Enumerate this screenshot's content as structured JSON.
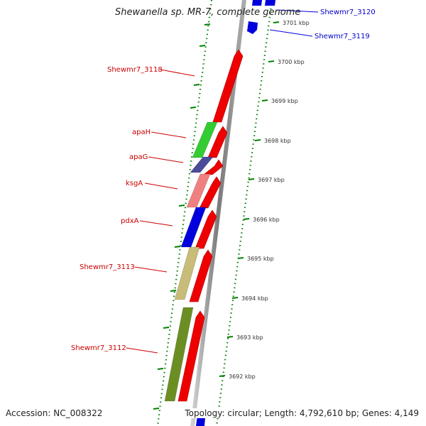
{
  "title": "Shewanella sp. MR-7, complete genome",
  "accession": "Accession: NC_008322",
  "topology": "Topology: circular; Length: 4,792,610 bp; Genes: 4,149",
  "colors": {
    "forward_gene": "#ee0000",
    "reverse_gene_label": "#cc0000",
    "top_gene": "#0000dd",
    "top_gene_label": "#0000cc",
    "backbone": "#8c8c8c",
    "ticks": "#008000"
  },
  "top_genes": [
    {
      "label": "Shewmr7_3120"
    },
    {
      "label": "Shewmr7_3119"
    }
  ],
  "forward_genes": [
    {
      "label": "Shewmr7_3118"
    },
    {
      "label": ""
    },
    {
      "label": ""
    },
    {
      "label": ""
    },
    {
      "label": ""
    },
    {
      "label": ""
    },
    {
      "label": ""
    }
  ],
  "reverse_genes": [
    {
      "label": "apaH",
      "color": "#33cc33"
    },
    {
      "label": "apaG",
      "color": "#4b4b99"
    },
    {
      "label": "ksgA",
      "color": "#f08080"
    },
    {
      "label": "pdxA",
      "color": "#0000dd"
    },
    {
      "label": "Shewmr7_3113",
      "color": "#c8bc78"
    },
    {
      "label": "Shewmr7_3112",
      "color": "#6b8e23"
    }
  ],
  "kbp_ticks": [
    {
      "label": "3701 kbp"
    },
    {
      "label": "3700 kbp"
    },
    {
      "label": "3699 kbp"
    },
    {
      "label": "3698 kbp"
    },
    {
      "label": "3697 kbp"
    },
    {
      "label": "3696 kbp"
    },
    {
      "label": "3695 kbp"
    },
    {
      "label": "3694 kbp"
    },
    {
      "label": "3693 kbp"
    },
    {
      "label": "3692 kbp"
    }
  ]
}
